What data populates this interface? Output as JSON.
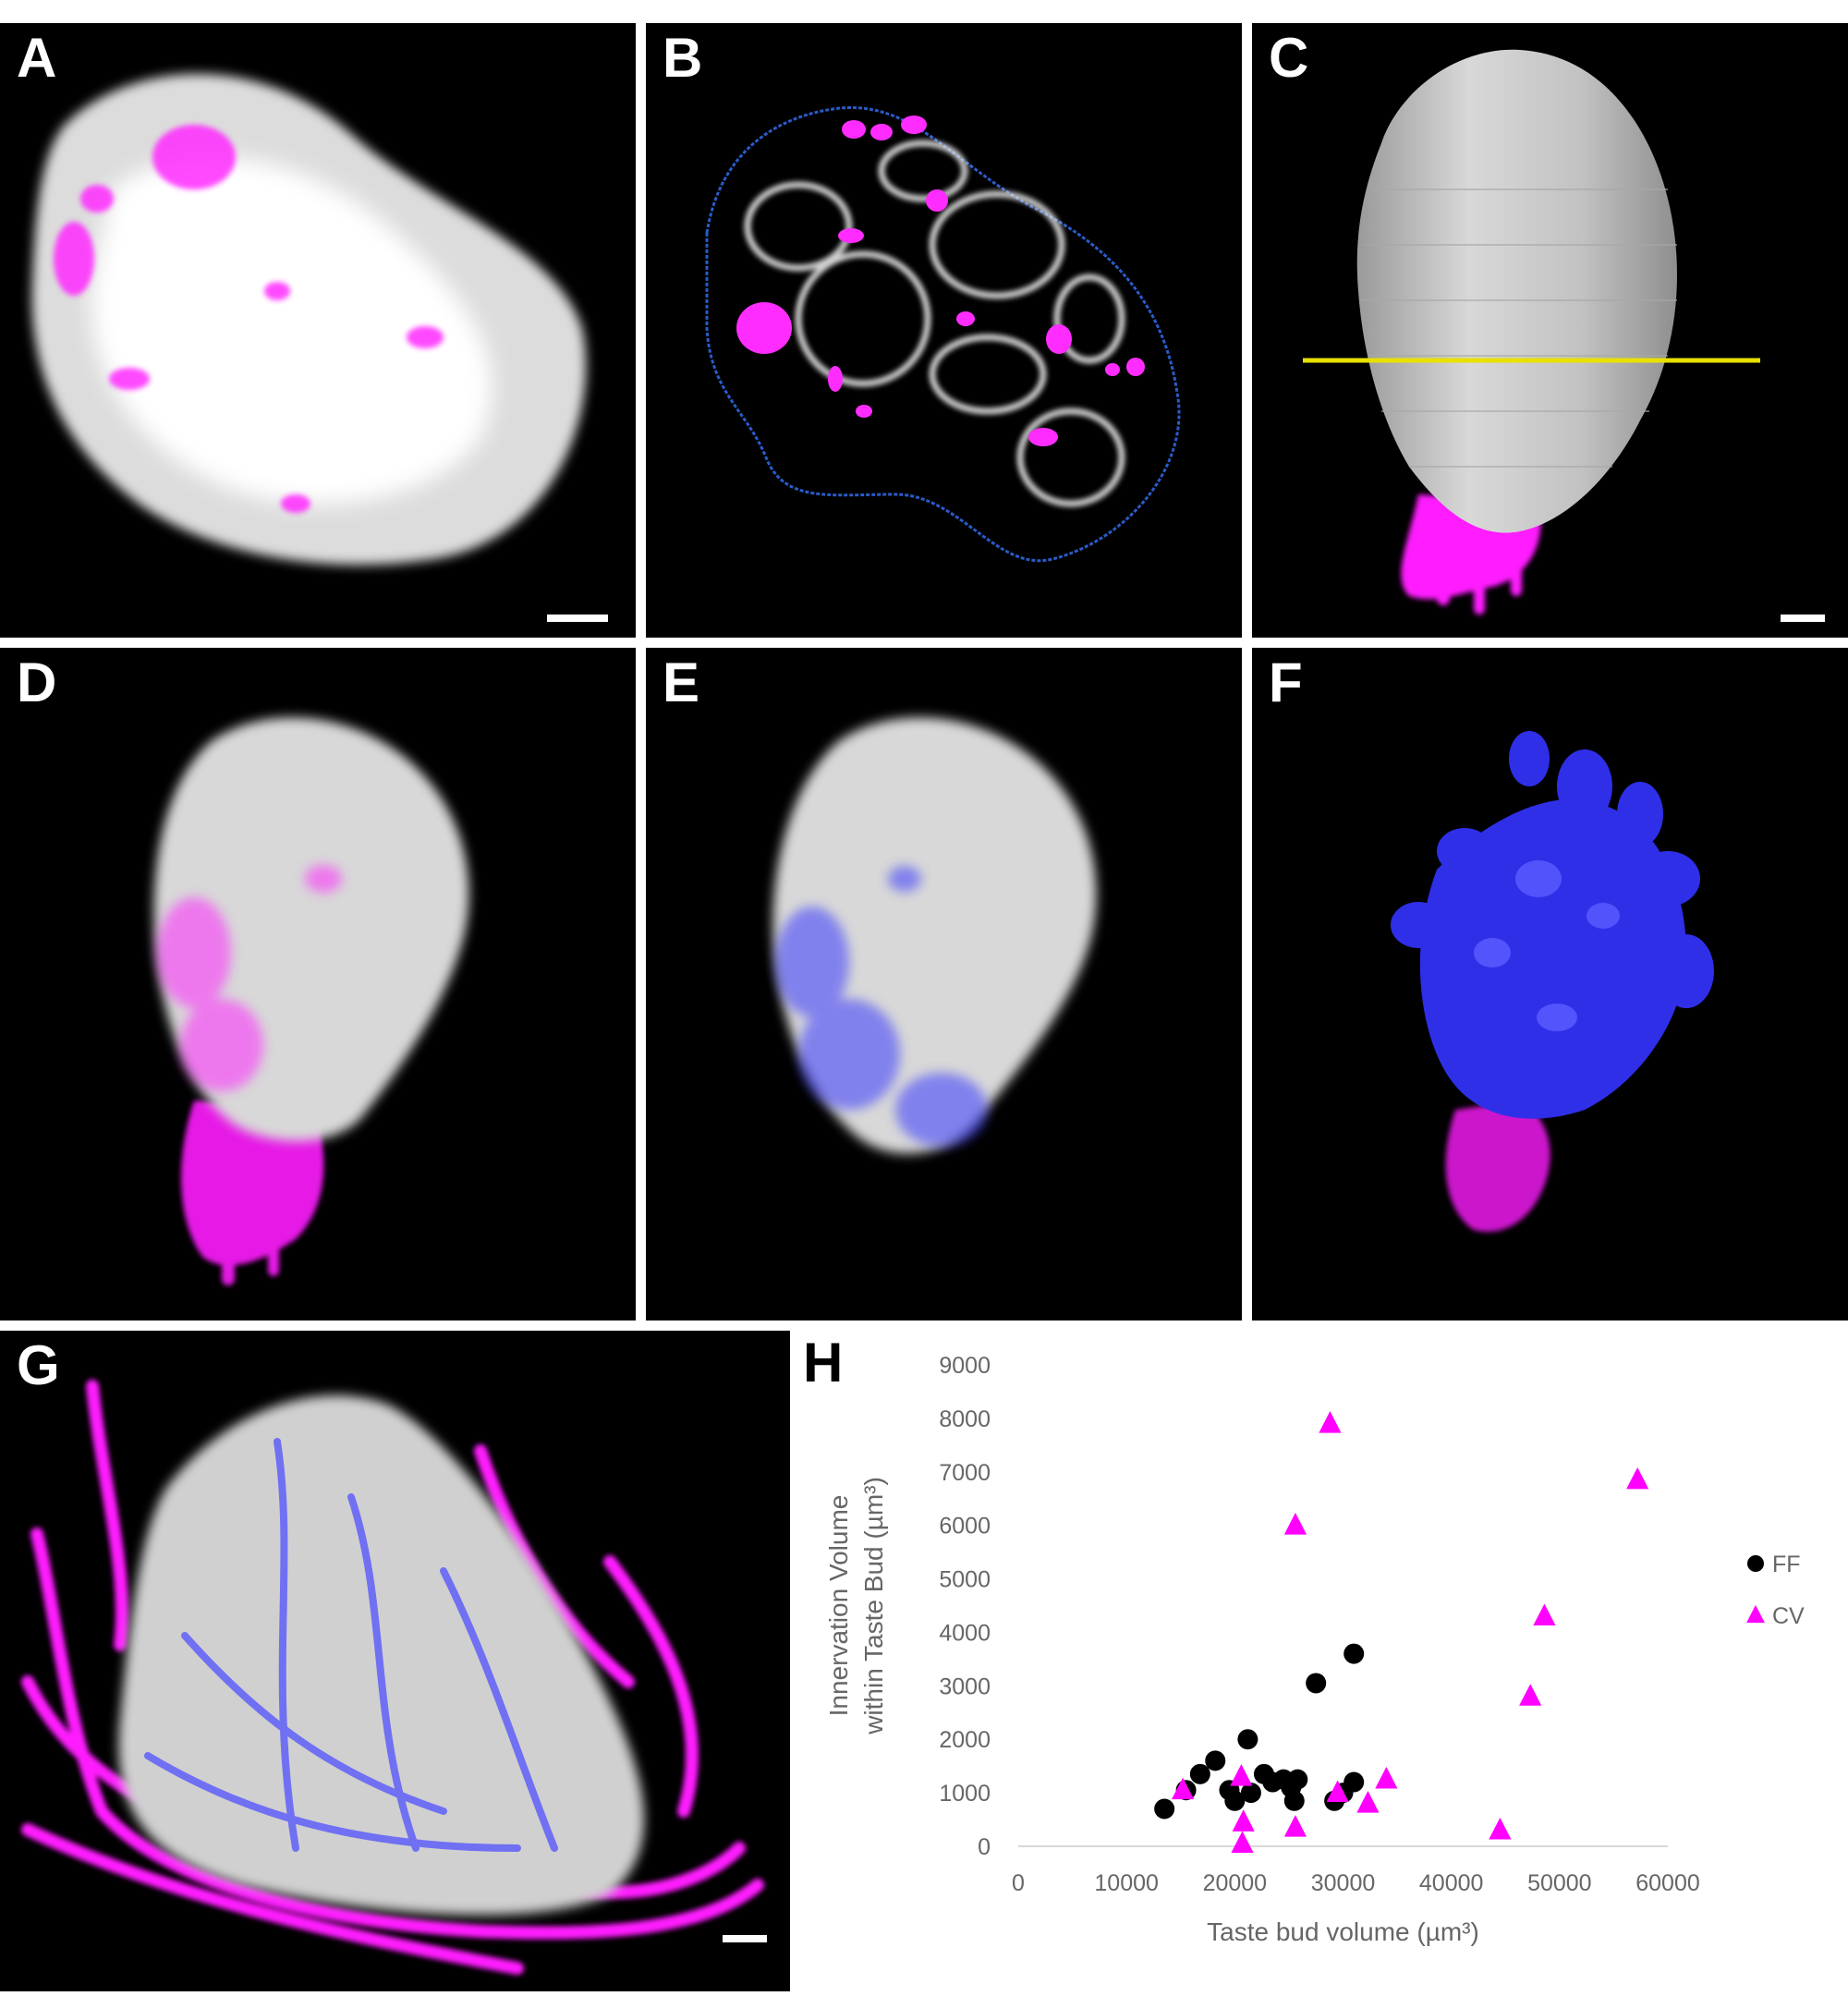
{
  "panels": {
    "a": {
      "label": "A"
    },
    "b": {
      "label": "B"
    },
    "c": {
      "label": "C"
    },
    "d": {
      "label": "D"
    },
    "e": {
      "label": "E"
    },
    "f": {
      "label": "F"
    },
    "g": {
      "label": "G"
    },
    "h": {
      "label": "H"
    }
  },
  "colors": {
    "magenta": "#ff1fff",
    "blue": "#3a3aff",
    "surface": "#c9c9c9",
    "outline": "#2a5bc8",
    "marker": "#e8e000"
  },
  "chart_data": {
    "type": "scatter",
    "xlabel": "Taste bud volume (µm³)",
    "ylabel_line1": "Innervation Volume",
    "ylabel_line2": "within Taste Bud (µm³)",
    "xlim": [
      0,
      60000
    ],
    "ylim": [
      0,
      9000
    ],
    "x_ticks": [
      0,
      10000,
      20000,
      30000,
      40000,
      50000,
      60000
    ],
    "y_ticks": [
      0,
      1000,
      2000,
      3000,
      4000,
      5000,
      6000,
      7000,
      8000,
      9000
    ],
    "legend_position": "right",
    "series": [
      {
        "name": "FF",
        "marker": "circle",
        "color": "#000000",
        "points": [
          [
            13500,
            700
          ],
          [
            15500,
            1050
          ],
          [
            16800,
            1350
          ],
          [
            18200,
            1600
          ],
          [
            19500,
            1050
          ],
          [
            20000,
            850
          ],
          [
            21500,
            1000
          ],
          [
            21200,
            2000
          ],
          [
            22700,
            1350
          ],
          [
            23500,
            1200
          ],
          [
            24500,
            1250
          ],
          [
            25200,
            1100
          ],
          [
            25800,
            1250
          ],
          [
            25500,
            850
          ],
          [
            27500,
            3050
          ],
          [
            29200,
            850
          ],
          [
            30000,
            1000
          ],
          [
            31000,
            1200
          ],
          [
            31000,
            3600
          ]
        ]
      },
      {
        "name": "CV",
        "marker": "triangle",
        "color": "#ff00ff",
        "points": [
          [
            15200,
            1050
          ],
          [
            20600,
            1300
          ],
          [
            20800,
            450
          ],
          [
            20700,
            50
          ],
          [
            25600,
            6000
          ],
          [
            25600,
            350
          ],
          [
            28800,
            7900
          ],
          [
            29500,
            1000
          ],
          [
            32300,
            800
          ],
          [
            34000,
            1250
          ],
          [
            44500,
            300
          ],
          [
            47300,
            2800
          ],
          [
            48600,
            4300
          ],
          [
            57200,
            6850
          ]
        ]
      }
    ]
  }
}
